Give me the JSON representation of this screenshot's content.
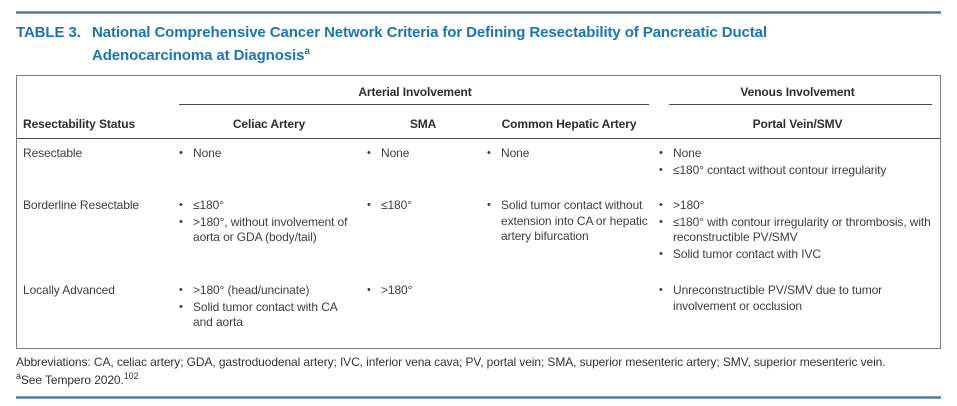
{
  "title": {
    "label": "TABLE 3.",
    "line1": "National Comprehensive Cancer Network Criteria for Defining Resectability of Pancreatic Ductal",
    "line2": "Adenocarcinoma at Diagnosis",
    "footnote_marker": "a"
  },
  "table": {
    "group_headers": [
      {
        "label": "Arterial Involvement",
        "span": 3
      },
      {
        "label": "Venous Involvement",
        "span": 1
      }
    ],
    "column_headers": [
      "Resectability Status",
      "Celiac Artery",
      "SMA",
      "Common Hepatic Artery",
      "Portal Vein/SMV"
    ],
    "rows": [
      {
        "status": "Resectable",
        "celiac_artery": [
          "None"
        ],
        "sma": [
          "None"
        ],
        "common_hepatic_artery": [
          "None"
        ],
        "portal_vein_smv": [
          "None",
          "≤180° contact without contour irregularity"
        ]
      },
      {
        "status": "Borderline Resectable",
        "celiac_artery": [
          "≤180°",
          ">180°, without involvement of aorta or GDA (body/tail)"
        ],
        "sma": [
          "≤180°"
        ],
        "common_hepatic_artery": [
          "Solid tumor contact without extension into CA or hepatic artery bifurcation"
        ],
        "portal_vein_smv": [
          ">180°",
          "≤180° with contour irregularity or thrombosis, with reconstructible PV/SMV",
          "Solid tumor contact with IVC"
        ]
      },
      {
        "status": "Locally Advanced",
        "celiac_artery": [
          ">180° (head/uncinate)",
          "Solid tumor contact with CA and aorta"
        ],
        "sma": [
          ">180°"
        ],
        "common_hepatic_artery": [],
        "portal_vein_smv": [
          "Unreconstructible PV/SMV due to tumor involvement or occlusion"
        ]
      }
    ]
  },
  "footnotes": {
    "abbreviations": "Abbreviations: CA, celiac artery; GDA, gastroduodenal artery; IVC, inferior vena cava; PV, portal vein; SMA, superior mesenteric artery; SMV, superior mesenteric vein.",
    "note_marker": "a",
    "note_text": "See Tempero 2020.",
    "note_ref": "102"
  },
  "colors": {
    "title_blue": "#1b74b8",
    "rule_blue": "#3c6a96",
    "body_text": "#3e3e3e",
    "table_border": "#7d7d7d"
  }
}
